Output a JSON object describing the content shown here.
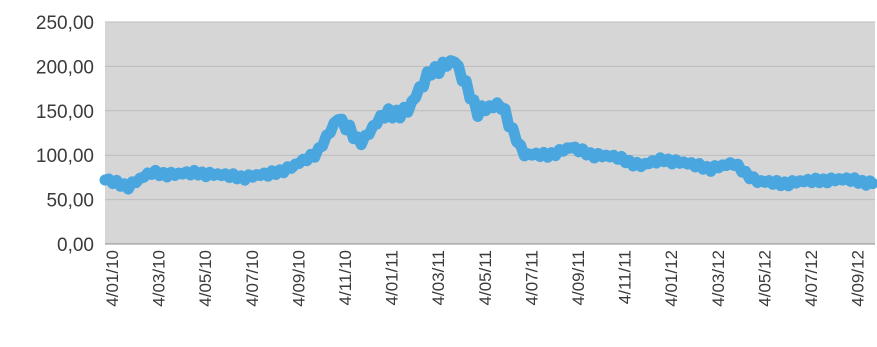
{
  "chart_data": {
    "type": "line",
    "title": "",
    "xlabel": "",
    "ylabel": "",
    "ylim": [
      0,
      250
    ],
    "yticks": [
      "0,00",
      "50,00",
      "100,00",
      "150,00",
      "200,00",
      "250,00"
    ],
    "ytick_values": [
      0,
      50,
      100,
      150,
      200,
      250
    ],
    "xticks": [
      "4/01/10",
      "4/03/10",
      "4/05/10",
      "4/07/10",
      "4/09/10",
      "4/11/10",
      "4/01/11",
      "4/03/11",
      "4/05/11",
      "4/07/11",
      "4/09/11",
      "4/11/11",
      "4/01/12",
      "4/03/12",
      "4/05/12",
      "4/07/12",
      "4/09/12"
    ],
    "grid": true,
    "legend": "none",
    "colors": {
      "line": "#4aa6df",
      "plot_bg": "#d6d6d6",
      "grid": "#bcbcbc",
      "axis": "#8c8c8c"
    },
    "series": [
      {
        "x": [
          "4/01/10",
          "4/02/10",
          "4/03/10",
          "4/04/10",
          "4/05/10",
          "4/06/10",
          "4/07/10",
          "4/08/10",
          "4/09/10",
          "4/10/10",
          "4/11/10",
          "4/12/10",
          "4/01/11",
          "4/02/11",
          "4/03/11",
          "4/04/11",
          "4/05/11",
          "4/06/11",
          "4/07/11",
          "4/08/11",
          "4/09/11",
          "4/10/11",
          "4/11/11",
          "4/12/11",
          "4/01/12",
          "4/02/12",
          "4/03/12",
          "4/04/12",
          "4/05/12",
          "4/06/12",
          "4/07/12",
          "4/08/12",
          "4/09/12",
          "4/10/12"
        ],
        "values": [
          72,
          65,
          80,
          78,
          80,
          77,
          75,
          78,
          86,
          100,
          140,
          115,
          145,
          150,
          195,
          205,
          150,
          155,
          100,
          100,
          108,
          100,
          97,
          88,
          95,
          90,
          85,
          90,
          70,
          68,
          70,
          72,
          72,
          68
        ]
      }
    ]
  }
}
